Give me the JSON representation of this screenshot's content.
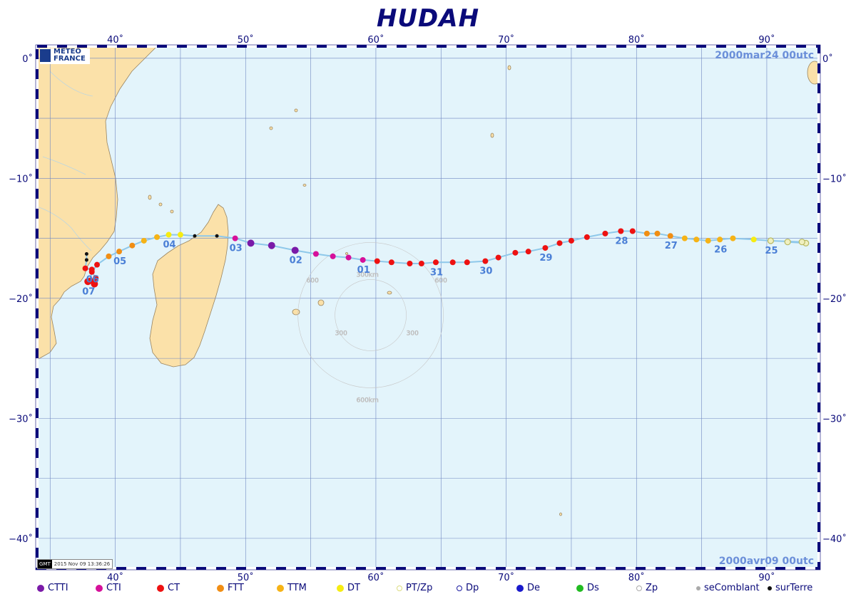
{
  "title": "HUDAH",
  "start_label": "2000mar24  00utc",
  "end_label": "2000avr09  00utc",
  "logo": {
    "line1": "METEO",
    "line2": "FRANCE"
  },
  "stamp": {
    "logo": "GMT",
    "text": "2015 Nov 09 13:36:26"
  },
  "map": {
    "lon_range": [
      34,
      94
    ],
    "lat_range": [
      -42.5,
      1
    ],
    "lon_ticks": [
      "40˚",
      "50˚",
      "60˚",
      "70˚",
      "80˚",
      "90˚"
    ],
    "lat_ticks": [
      "0˚",
      "−10˚",
      "−20˚",
      "−30˚",
      "−40˚"
    ],
    "grid": "every 5 degrees",
    "colors": {
      "ocean": "#e3f4fb",
      "land": "#fbe1a9",
      "track": "#8ec8ea",
      "grid": "#6f86c2"
    },
    "range_rings": {
      "center_lon": 59.6,
      "center_lat": -21.4,
      "labels": [
        "300km",
        "600km",
        "300",
        "300",
        "600",
        "600"
      ]
    }
  },
  "legend": [
    {
      "label": "CTTI",
      "color": "#7a1aa8",
      "style": "filled"
    },
    {
      "label": "CTI",
      "color": "#d6109a",
      "style": "filled"
    },
    {
      "label": "CT",
      "color": "#ee1111",
      "style": "filled"
    },
    {
      "label": "FTT",
      "color": "#f18e14",
      "style": "filled"
    },
    {
      "label": "TTM",
      "color": "#f6b316",
      "style": "filled"
    },
    {
      "label": "DT",
      "color": "#f6ec12",
      "style": "filled"
    },
    {
      "label": "PT/Zp",
      "color": "#dcdc80",
      "style": "ring"
    },
    {
      "label": "Dp",
      "color": "#1a1aa0",
      "style": "ring"
    },
    {
      "label": "De",
      "color": "#1a1acc",
      "style": "filled"
    },
    {
      "label": "Ds",
      "color": "#22bb22",
      "style": "filled"
    },
    {
      "label": "Zp",
      "color": "#aaaaaa",
      "style": "ring"
    },
    {
      "label": "seComblant",
      "color": "#aaaaaa",
      "style": "filled"
    },
    {
      "label": "surTerre",
      "color": "#111111",
      "style": "filled"
    }
  ],
  "track": [
    {
      "lon": 93.0,
      "lat": -15.4,
      "cat": "PT/Zp",
      "r": 4
    },
    {
      "lon": 91.6,
      "lat": -15.3,
      "cat": "PT/Zp"
    },
    {
      "lon": 92.7,
      "lat": -15.3,
      "cat": "PT/Zp"
    },
    {
      "lon": 90.3,
      "lat": -15.2,
      "cat": "PT/Zp"
    },
    {
      "lon": 89.0,
      "lat": -15.1,
      "cat": "DT"
    },
    {
      "lon": 87.4,
      "lat": -15.0,
      "cat": "TTM"
    },
    {
      "lon": 86.4,
      "lat": -15.1,
      "cat": "TTM"
    },
    {
      "lon": 85.5,
      "lat": -15.2,
      "cat": "TTM"
    },
    {
      "lon": 84.6,
      "lat": -15.1,
      "cat": "TTM"
    },
    {
      "lon": 83.7,
      "lat": -15.0,
      "cat": "TTM"
    },
    {
      "lon": 82.6,
      "lat": -14.8,
      "cat": "FTT"
    },
    {
      "lon": 81.6,
      "lat": -14.6,
      "cat": "FTT"
    },
    {
      "lon": 80.8,
      "lat": -14.6,
      "cat": "FTT"
    },
    {
      "lon": 79.7,
      "lat": -14.4,
      "cat": "CT"
    },
    {
      "lon": 78.8,
      "lat": -14.4,
      "cat": "CT"
    },
    {
      "lon": 77.6,
      "lat": -14.6,
      "cat": "CT"
    },
    {
      "lon": 76.2,
      "lat": -14.9,
      "cat": "CT"
    },
    {
      "lon": 75.0,
      "lat": -15.2,
      "cat": "CT"
    },
    {
      "lon": 74.1,
      "lat": -15.4,
      "cat": "CT"
    },
    {
      "lon": 73.0,
      "lat": -15.8,
      "cat": "CT"
    },
    {
      "lon": 71.7,
      "lat": -16.1,
      "cat": "CT"
    },
    {
      "lon": 70.7,
      "lat": -16.2,
      "cat": "CT"
    },
    {
      "lon": 69.4,
      "lat": -16.6,
      "cat": "CT"
    },
    {
      "lon": 68.4,
      "lat": -16.9,
      "cat": "CT"
    },
    {
      "lon": 67.0,
      "lat": -17.0,
      "cat": "CT"
    },
    {
      "lon": 65.9,
      "lat": -17.0,
      "cat": "CT"
    },
    {
      "lon": 64.6,
      "lat": -17.0,
      "cat": "CT"
    },
    {
      "lon": 63.5,
      "lat": -17.1,
      "cat": "CT"
    },
    {
      "lon": 62.6,
      "lat": -17.1,
      "cat": "CT"
    },
    {
      "lon": 61.2,
      "lat": -17.0,
      "cat": "CT"
    },
    {
      "lon": 60.1,
      "lat": -16.9,
      "cat": "CT"
    },
    {
      "lon": 59.0,
      "lat": -16.8,
      "cat": "CTI"
    },
    {
      "lon": 57.9,
      "lat": -16.6,
      "cat": "CTI"
    },
    {
      "lon": 56.7,
      "lat": -16.5,
      "cat": "CTI"
    },
    {
      "lon": 55.4,
      "lat": -16.3,
      "cat": "CTI"
    },
    {
      "lon": 53.8,
      "lat": -16.0,
      "cat": "CTTI",
      "r": 5
    },
    {
      "lon": 52.0,
      "lat": -15.6,
      "cat": "CTTI",
      "r": 5
    },
    {
      "lon": 50.4,
      "lat": -15.4,
      "cat": "CTTI",
      "r": 5
    },
    {
      "lon": 49.2,
      "lat": -15.0,
      "cat": "CTI"
    },
    {
      "lon": 47.8,
      "lat": -14.8,
      "cat": "surTerre"
    },
    {
      "lon": 46.1,
      "lat": -14.8,
      "cat": "surTerre"
    },
    {
      "lon": 45.0,
      "lat": -14.7,
      "cat": "DT"
    },
    {
      "lon": 44.1,
      "lat": -14.7,
      "cat": "DT"
    },
    {
      "lon": 43.2,
      "lat": -14.9,
      "cat": "TTM"
    },
    {
      "lon": 42.2,
      "lat": -15.2,
      "cat": "TTM"
    },
    {
      "lon": 41.3,
      "lat": -15.6,
      "cat": "FTT"
    },
    {
      "lon": 40.3,
      "lat": -16.1,
      "cat": "FTT"
    },
    {
      "lon": 39.5,
      "lat": -16.5,
      "cat": "FTT"
    },
    {
      "lon": 38.6,
      "lat": -17.2,
      "cat": "CT"
    },
    {
      "lon": 38.2,
      "lat": -17.8,
      "cat": "CT"
    },
    {
      "lon": 38.5,
      "lat": -18.3,
      "cat": "CT"
    },
    {
      "lon": 38.4,
      "lat": -18.8,
      "cat": "CT",
      "r": 5
    },
    {
      "lon": 37.9,
      "lat": -18.6,
      "cat": "CT",
      "r": 5
    },
    {
      "lon": 38.1,
      "lat": -18.5,
      "cat": "CT"
    },
    {
      "lon": 38.2,
      "lat": -17.6,
      "cat": "CT"
    },
    {
      "lon": 37.7,
      "lat": -17.5,
      "cat": "CT"
    },
    {
      "lon": 37.8,
      "lat": -16.8,
      "cat": "surTerre"
    },
    {
      "lon": 37.8,
      "lat": -16.3,
      "cat": "surTerre"
    }
  ],
  "day_labels": [
    {
      "text": "25",
      "lon": 90.3,
      "lat": -15.2
    },
    {
      "text": "26",
      "lon": 86.4,
      "lat": -15.1
    },
    {
      "text": "27",
      "lon": 82.6,
      "lat": -14.8
    },
    {
      "text": "28",
      "lon": 78.8,
      "lat": -14.4
    },
    {
      "text": "29",
      "lon": 73.0,
      "lat": -15.8
    },
    {
      "text": "30",
      "lon": 68.4,
      "lat": -16.9
    },
    {
      "text": "31",
      "lon": 64.6,
      "lat": -17.0
    },
    {
      "text": "01",
      "lon": 59.0,
      "lat": -16.8
    },
    {
      "text": "02",
      "lon": 53.8,
      "lat": -16.0
    },
    {
      "text": "03",
      "lon": 49.2,
      "lat": -15.0
    },
    {
      "text": "04",
      "lon": 44.1,
      "lat": -14.7
    },
    {
      "text": "05",
      "lon": 40.3,
      "lat": -16.1
    },
    {
      "text": "06",
      "lon": 38.2,
      "lat": -17.6
    },
    {
      "text": "07",
      "lon": 37.9,
      "lat": -18.6
    }
  ]
}
